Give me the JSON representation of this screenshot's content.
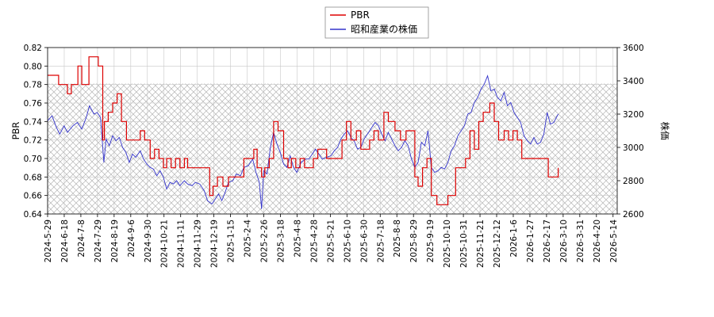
{
  "chart_data": {
    "type": "line",
    "legend": {
      "placement": "top-center"
    },
    "grid": true,
    "x_tick_labels": [
      "2024-5-29",
      "2024-6-18",
      "2024-7-8",
      "2024-7-29",
      "2024-8-19",
      "2024-9-6",
      "2024-9-30",
      "2024-10-21",
      "2024-11-11",
      "2024-11-29",
      "2024-12-19",
      "2025-1-15",
      "2025-2-4",
      "2025-2-26",
      "2025-3-18",
      "2025-4-8",
      "2025-4-28",
      "2025-5-21",
      "2025-6-10",
      "2025-6-30",
      "2025-7-18",
      "2025-8-8",
      "2025-8-29",
      "2025-9-19",
      "2025-10-10",
      "2025-10-31",
      "2025-11-21",
      "2025-12-12",
      "2026-1-6",
      "2026-1-27",
      "2026-2-17",
      "2026-3-10",
      "2026-3-31",
      "2026-4-20",
      "2026-5-14"
    ],
    "y_left": {
      "label": "PBR",
      "min": 0.64,
      "max": 0.82,
      "ticks": [
        "0.64",
        "0.66",
        "0.68",
        "0.70",
        "0.72",
        "0.74",
        "0.76",
        "0.78",
        "0.80",
        "0.82"
      ]
    },
    "y_right": {
      "label": "株価",
      "min": 2600,
      "max": 3600,
      "ticks": [
        "2600",
        "2800",
        "3000",
        "3200",
        "3400",
        "3600"
      ]
    },
    "shaded_band": {
      "axis": "left",
      "from": 0.64,
      "to": 0.781
    },
    "series": [
      {
        "name": "PBR",
        "axis": "left",
        "color": "#dd0000",
        "points": [
          [
            0,
            0.79
          ],
          [
            1.5,
            0.79
          ],
          [
            2,
            0.78
          ],
          [
            3,
            0.78
          ],
          [
            3.6,
            0.77
          ],
          [
            4.3,
            0.78
          ],
          [
            5.5,
            0.8
          ],
          [
            6.2,
            0.78
          ],
          [
            7,
            0.78
          ],
          [
            7.5,
            0.81
          ],
          [
            8.5,
            0.81
          ],
          [
            9.2,
            0.8
          ],
          [
            10,
            0.72
          ],
          [
            10.3,
            0.74
          ],
          [
            11,
            0.75
          ],
          [
            11.8,
            0.76
          ],
          [
            12.6,
            0.77
          ],
          [
            13.4,
            0.74
          ],
          [
            14.3,
            0.72
          ],
          [
            16,
            0.72
          ],
          [
            16.8,
            0.73
          ],
          [
            17.6,
            0.72
          ],
          [
            18.6,
            0.7
          ],
          [
            19.4,
            0.71
          ],
          [
            20.2,
            0.7
          ],
          [
            21,
            0.69
          ],
          [
            21.6,
            0.7
          ],
          [
            22.4,
            0.69
          ],
          [
            23.2,
            0.7
          ],
          [
            24,
            0.69
          ],
          [
            24.8,
            0.7
          ],
          [
            25.4,
            0.69
          ],
          [
            28,
            0.69
          ],
          [
            29.4,
            0.66
          ],
          [
            30,
            0.67
          ],
          [
            30.8,
            0.68
          ],
          [
            31.8,
            0.67
          ],
          [
            32.8,
            0.68
          ],
          [
            34.8,
            0.68
          ],
          [
            35.6,
            0.7
          ],
          [
            36.6,
            0.7
          ],
          [
            37.4,
            0.71
          ],
          [
            38,
            0.69
          ],
          [
            38.8,
            0.68
          ],
          [
            39.4,
            0.69
          ],
          [
            40.2,
            0.7
          ],
          [
            41,
            0.74
          ],
          [
            41.8,
            0.73
          ],
          [
            42.8,
            0.7
          ],
          [
            43.6,
            0.69
          ],
          [
            44.2,
            0.7
          ],
          [
            45,
            0.69
          ],
          [
            45.8,
            0.7
          ],
          [
            46.6,
            0.69
          ],
          [
            47.4,
            0.69
          ],
          [
            48.2,
            0.7
          ],
          [
            49,
            0.71
          ],
          [
            50.6,
            0.7
          ],
          [
            51.6,
            0.7
          ],
          [
            52.6,
            0.7
          ],
          [
            53.4,
            0.72
          ],
          [
            54.2,
            0.74
          ],
          [
            55,
            0.72
          ],
          [
            56,
            0.73
          ],
          [
            56.8,
            0.71
          ],
          [
            57.6,
            0.71
          ],
          [
            58.4,
            0.72
          ],
          [
            59.2,
            0.73
          ],
          [
            60,
            0.72
          ],
          [
            61,
            0.75
          ],
          [
            61.8,
            0.74
          ],
          [
            63,
            0.73
          ],
          [
            64,
            0.72
          ],
          [
            65,
            0.73
          ],
          [
            66,
            0.73
          ],
          [
            66.6,
            0.68
          ],
          [
            67.2,
            0.67
          ],
          [
            68,
            0.69
          ],
          [
            68.8,
            0.7
          ],
          [
            69.6,
            0.66
          ],
          [
            70.6,
            0.65
          ],
          [
            72,
            0.65
          ],
          [
            72.6,
            0.66
          ],
          [
            73.2,
            0.66
          ],
          [
            74,
            0.69
          ],
          [
            75,
            0.69
          ],
          [
            75.8,
            0.7
          ],
          [
            76.6,
            0.73
          ],
          [
            77.4,
            0.71
          ],
          [
            78.2,
            0.74
          ],
          [
            79,
            0.75
          ],
          [
            80.2,
            0.76
          ],
          [
            81,
            0.74
          ],
          [
            81.8,
            0.72
          ],
          [
            82.8,
            0.73
          ],
          [
            83.6,
            0.72
          ],
          [
            84.4,
            0.73
          ],
          [
            85.2,
            0.72
          ],
          [
            86,
            0.7
          ],
          [
            90,
            0.7
          ],
          [
            90.8,
            0.68
          ],
          [
            92,
            0.68
          ],
          [
            92.6,
            0.69
          ]
        ]
      },
      {
        "name": "昭和産業の株価",
        "axis": "right",
        "color": "#3333cc",
        "points": [
          [
            0,
            3160
          ],
          [
            0.8,
            3190
          ],
          [
            1.6,
            3120
          ],
          [
            2.2,
            3080
          ],
          [
            3,
            3130
          ],
          [
            3.6,
            3090
          ],
          [
            4.6,
            3130
          ],
          [
            5.4,
            3150
          ],
          [
            6.2,
            3110
          ],
          [
            7,
            3180
          ],
          [
            7.6,
            3250
          ],
          [
            8.4,
            3200
          ],
          [
            9,
            3210
          ],
          [
            9.6,
            3180
          ],
          [
            10.2,
            2910
          ],
          [
            10.6,
            3050
          ],
          [
            11.2,
            3010
          ],
          [
            11.8,
            3070
          ],
          [
            12.4,
            3040
          ],
          [
            13,
            3060
          ],
          [
            13.6,
            3000
          ],
          [
            14.2,
            2970
          ],
          [
            14.8,
            2910
          ],
          [
            15.4,
            2960
          ],
          [
            16,
            2940
          ],
          [
            16.8,
            2980
          ],
          [
            17.4,
            2930
          ],
          [
            18,
            2900
          ],
          [
            18.6,
            2880
          ],
          [
            19.2,
            2870
          ],
          [
            19.8,
            2830
          ],
          [
            20.4,
            2860
          ],
          [
            21,
            2820
          ],
          [
            21.6,
            2750
          ],
          [
            22.2,
            2790
          ],
          [
            22.8,
            2780
          ],
          [
            23.4,
            2800
          ],
          [
            24,
            2770
          ],
          [
            24.8,
            2800
          ],
          [
            25.4,
            2780
          ],
          [
            26.2,
            2770
          ],
          [
            26.8,
            2790
          ],
          [
            27.6,
            2780
          ],
          [
            28.4,
            2740
          ],
          [
            29,
            2680
          ],
          [
            29.8,
            2660
          ],
          [
            30.4,
            2690
          ],
          [
            31,
            2720
          ],
          [
            31.6,
            2680
          ],
          [
            32.2,
            2730
          ],
          [
            32.8,
            2790
          ],
          [
            33.6,
            2800
          ],
          [
            34.2,
            2840
          ],
          [
            35,
            2830
          ],
          [
            35.6,
            2880
          ],
          [
            36.4,
            2890
          ],
          [
            37.2,
            2930
          ],
          [
            37.8,
            2850
          ],
          [
            38.4,
            2790
          ],
          [
            38.8,
            2630
          ],
          [
            39.2,
            2860
          ],
          [
            39.8,
            2840
          ],
          [
            40.4,
            3000
          ],
          [
            41,
            3090
          ],
          [
            41.6,
            3020
          ],
          [
            42.2,
            2970
          ],
          [
            42.8,
            2900
          ],
          [
            43.4,
            2880
          ],
          [
            44,
            2950
          ],
          [
            44.6,
            2880
          ],
          [
            45.2,
            2850
          ],
          [
            46,
            2910
          ],
          [
            46.8,
            2930
          ],
          [
            47.4,
            2930
          ],
          [
            48,
            2960
          ],
          [
            48.6,
            2990
          ],
          [
            49.2,
            2960
          ],
          [
            49.8,
            2930
          ],
          [
            50.6,
            2940
          ],
          [
            51.4,
            2950
          ],
          [
            52,
            2980
          ],
          [
            52.6,
            3000
          ],
          [
            53.2,
            3050
          ],
          [
            53.8,
            3080
          ],
          [
            54.4,
            3100
          ],
          [
            55,
            3060
          ],
          [
            55.6,
            3040
          ],
          [
            56.2,
            2990
          ],
          [
            56.8,
            3000
          ],
          [
            57.4,
            3050
          ],
          [
            58,
            3080
          ],
          [
            58.6,
            3110
          ],
          [
            59.4,
            3150
          ],
          [
            60,
            3130
          ],
          [
            60.6,
            3080
          ],
          [
            61.2,
            3040
          ],
          [
            61.8,
            3090
          ],
          [
            62.4,
            3050
          ],
          [
            63,
            3010
          ],
          [
            63.6,
            2980
          ],
          [
            64.2,
            3000
          ],
          [
            64.8,
            3040
          ],
          [
            65.4,
            3010
          ],
          [
            66,
            2930
          ],
          [
            66.6,
            2880
          ],
          [
            67.2,
            2910
          ],
          [
            67.8,
            3030
          ],
          [
            68.4,
            3010
          ],
          [
            69,
            3100
          ],
          [
            69.6,
            2880
          ],
          [
            70.2,
            2850
          ],
          [
            70.8,
            2860
          ],
          [
            71.4,
            2880
          ],
          [
            72,
            2870
          ],
          [
            72.6,
            2910
          ],
          [
            73.2,
            2980
          ],
          [
            73.8,
            3010
          ],
          [
            74.4,
            3070
          ],
          [
            75,
            3100
          ],
          [
            75.6,
            3130
          ],
          [
            76.2,
            3200
          ],
          [
            76.8,
            3210
          ],
          [
            77.4,
            3270
          ],
          [
            78,
            3300
          ],
          [
            78.6,
            3350
          ],
          [
            79.2,
            3380
          ],
          [
            79.8,
            3430
          ],
          [
            80.4,
            3340
          ],
          [
            81,
            3350
          ],
          [
            81.6,
            3300
          ],
          [
            82.2,
            3280
          ],
          [
            82.8,
            3330
          ],
          [
            83.4,
            3250
          ],
          [
            84,
            3270
          ],
          [
            84.6,
            3210
          ],
          [
            85.2,
            3180
          ],
          [
            85.8,
            3150
          ],
          [
            86.4,
            3070
          ],
          [
            87,
            3040
          ],
          [
            87.6,
            3020
          ],
          [
            88.2,
            3060
          ],
          [
            88.8,
            3020
          ],
          [
            89.4,
            3030
          ],
          [
            90,
            3080
          ],
          [
            90.6,
            3210
          ],
          [
            91.2,
            3140
          ],
          [
            91.8,
            3150
          ],
          [
            92.6,
            3200
          ]
        ]
      }
    ]
  }
}
